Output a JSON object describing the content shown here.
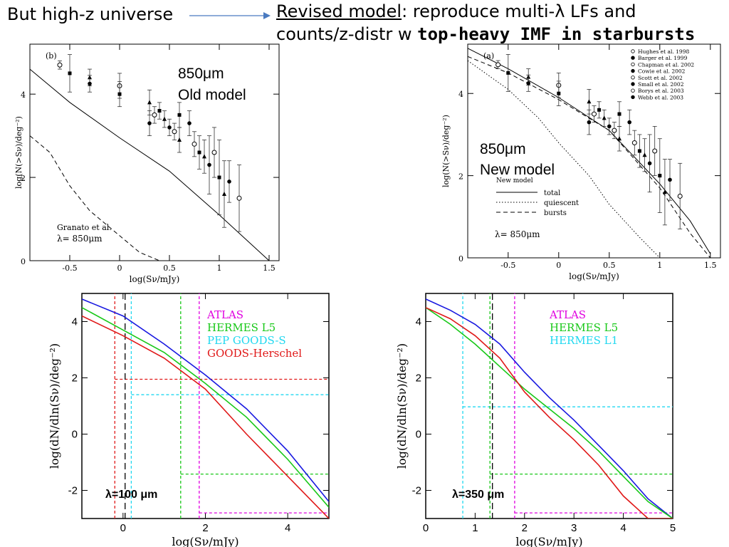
{
  "header": {
    "left": "But high-z universe",
    "right_line1_underlined": "Revised model",
    "right_line1_rest": ": reproduce multi-λ LFs and",
    "right_line2_normal": "counts/z-distr w ",
    "right_line2_bold": "top-heavy IMF in starbursts"
  },
  "chart_data": [
    {
      "id": "old",
      "type": "scatter",
      "panel_label": "(b)",
      "annotation": "850μm",
      "annotation2": "Old model",
      "note1": "Granato et al.",
      "note2": "λ=  850μm",
      "xlabel": "log(Sν/mJy)",
      "ylabel": "log(N(>Sν)/deg⁻²)",
      "xlim": [
        -0.9,
        1.6
      ],
      "ylim": [
        0,
        5.2
      ],
      "xticks": [
        -0.5,
        0,
        0.5,
        1,
        1.5
      ],
      "yticks": [
        0,
        2,
        4
      ],
      "series": [
        {
          "style": "solid",
          "x": [
            -0.9,
            -0.5,
            0,
            0.5,
            1,
            1.5
          ],
          "y": [
            4.6,
            3.8,
            2.95,
            2.15,
            1.1,
            0
          ]
        },
        {
          "style": "dashed",
          "x": [
            -0.9,
            -0.7,
            -0.5,
            -0.3,
            0,
            0.2,
            0.4
          ],
          "y": [
            3.0,
            2.6,
            1.8,
            1.2,
            0.6,
            0.2,
            -0.1
          ]
        }
      ],
      "points": {
        "x": [
          -0.6,
          -0.5,
          -0.3,
          -0.3,
          0,
          0,
          0.3,
          0.3,
          0.35,
          0.4,
          0.45,
          0.5,
          0.55,
          0.6,
          0.6,
          0.7,
          0.75,
          0.8,
          0.85,
          0.9,
          0.95,
          1.0,
          1.05,
          1.1,
          1.2
        ],
        "y": [
          4.7,
          4.5,
          4.4,
          4.25,
          4.2,
          4.0,
          3.8,
          3.3,
          3.5,
          3.6,
          3.4,
          3.2,
          3.1,
          3.5,
          2.9,
          3.3,
          2.8,
          2.6,
          2.5,
          2.3,
          2.6,
          2.0,
          1.6,
          1.9,
          1.5
        ],
        "err": [
          0.1,
          0.45,
          0.2,
          0.2,
          0.3,
          0.3,
          0.3,
          0.3,
          0.2,
          0.2,
          0.2,
          0.2,
          0.2,
          0.3,
          0.3,
          0.3,
          0.3,
          0.4,
          0.4,
          0.7,
          0.6,
          0.9,
          0.8,
          0.5,
          0.8
        ]
      }
    },
    {
      "id": "new",
      "type": "scatter",
      "panel_label": "(a)",
      "annotation": "850μm",
      "annotation2": "New model",
      "legend_title": "New model",
      "legend": [
        "total",
        "quiescent",
        "bursts"
      ],
      "note2": "λ=  850μm",
      "refs": [
        "Hughes et al. 1998",
        "Barger et al. 1999",
        "Chapman et al. 2002",
        "Cowie et al. 2002",
        "Scott et al. 2002",
        "Small et al. 2002",
        "Borys et al. 2003",
        "Webb et al. 2003"
      ],
      "xlabel": "log(Sν/mJy)",
      "ylabel": "log(N(>Sν)/deg⁻²)",
      "xlim": [
        -0.9,
        1.6
      ],
      "ylim": [
        0,
        5.2
      ],
      "xticks": [
        -0.5,
        0,
        0.5,
        1,
        1.5
      ],
      "yticks": [
        0,
        2,
        4
      ],
      "series": [
        {
          "style": "solid",
          "x": [
            -0.9,
            -0.5,
            0,
            0.5,
            1,
            1.3,
            1.5
          ],
          "y": [
            5.1,
            4.6,
            3.9,
            3.1,
            1.8,
            0.9,
            0.1
          ]
        },
        {
          "style": "dotted",
          "x": [
            -0.9,
            -0.5,
            -0.2,
            0,
            0.3,
            0.5,
            0.8,
            1.0
          ],
          "y": [
            4.8,
            4.1,
            3.4,
            2.8,
            2.0,
            1.3,
            0.5,
            0
          ]
        },
        {
          "style": "dashed",
          "x": [
            -0.9,
            -0.5,
            0,
            0.5,
            1,
            1.3,
            1.5
          ],
          "y": [
            4.9,
            4.5,
            3.85,
            3.1,
            1.7,
            0.6,
            0
          ]
        }
      ],
      "points": {
        "x": [
          -0.6,
          -0.5,
          -0.3,
          -0.3,
          0,
          0,
          0.3,
          0.3,
          0.35,
          0.4,
          0.45,
          0.5,
          0.55,
          0.6,
          0.6,
          0.7,
          0.75,
          0.8,
          0.85,
          0.9,
          0.95,
          1.0,
          1.05,
          1.1,
          1.2
        ],
        "y": [
          4.7,
          4.5,
          4.4,
          4.25,
          4.2,
          4.0,
          3.8,
          3.3,
          3.5,
          3.6,
          3.4,
          3.2,
          3.1,
          3.5,
          2.9,
          3.3,
          2.8,
          2.6,
          2.5,
          2.3,
          2.6,
          2.0,
          1.6,
          1.9,
          1.5
        ],
        "err": [
          0.1,
          0.45,
          0.2,
          0.2,
          0.3,
          0.3,
          0.3,
          0.3,
          0.2,
          0.2,
          0.2,
          0.2,
          0.2,
          0.3,
          0.3,
          0.3,
          0.3,
          0.4,
          0.4,
          0.7,
          0.6,
          0.9,
          0.8,
          0.5,
          0.8
        ]
      }
    },
    {
      "id": "c100",
      "type": "line",
      "annotation": "λ=100 μm",
      "xlabel": "log(Sν/mJy)",
      "ylabel": "log(dN/dln(Sν)/deg⁻²)",
      "xlim": [
        -1,
        5
      ],
      "ylim": [
        -3,
        5
      ],
      "xticks": [
        0,
        2,
        4
      ],
      "yticks": [
        -2,
        0,
        2,
        4
      ],
      "legend": [
        {
          "name": "ATLAS",
          "color": "#e000e0"
        },
        {
          "name": "HERMES L5",
          "color": "#18c818"
        },
        {
          "name": "PEP GOODS-S",
          "color": "#20d8f0"
        },
        {
          "name": "GOODS-Herschel",
          "color": "#e01818"
        }
      ],
      "vline_black": 0.05,
      "limits": [
        {
          "color": "#e01818",
          "x": -0.2,
          "y": 1.95
        },
        {
          "color": "#20d8f0",
          "x": 0.2,
          "y": 1.4
        },
        {
          "color": "#18c818",
          "x": 1.4,
          "y": -1.42
        },
        {
          "color": "#e000e0",
          "x": 1.85,
          "y": -2.8
        }
      ],
      "series": [
        {
          "color": "#1818e0",
          "x": [
            -1,
            0,
            1,
            2,
            3,
            4,
            5
          ],
          "y": [
            4.8,
            4.2,
            3.2,
            2.1,
            0.9,
            -0.6,
            -2.4
          ]
        },
        {
          "color": "#18c818",
          "x": [
            -1,
            0,
            1,
            2,
            3,
            4,
            5
          ],
          "y": [
            4.5,
            3.7,
            2.9,
            1.8,
            0.6,
            -0.9,
            -2.6
          ]
        },
        {
          "color": "#e01818",
          "x": [
            -1,
            0,
            1,
            2,
            3,
            4,
            5
          ],
          "y": [
            4.2,
            3.5,
            2.7,
            1.6,
            0.0,
            -1.5,
            -3.0
          ]
        }
      ]
    },
    {
      "id": "c350",
      "type": "line",
      "annotation": "λ=350 μm",
      "xlabel": "log(Sν/mJy)",
      "ylabel": "log(dN/dln(Sν)/deg⁻²)",
      "xlim": [
        0,
        5
      ],
      "ylim": [
        -3,
        5
      ],
      "xticks": [
        0,
        1,
        2,
        3,
        4,
        5
      ],
      "yticks": [
        -2,
        0,
        2,
        4
      ],
      "legend": [
        {
          "name": "ATLAS",
          "color": "#e000e0"
        },
        {
          "name": "HERMES L5",
          "color": "#18c818"
        },
        {
          "name": "HERMES L1",
          "color": "#20d8f0"
        }
      ],
      "vline_black": 1.35,
      "limits": [
        {
          "color": "#20d8f0",
          "x": 0.75,
          "y": 0.97
        },
        {
          "color": "#18c818",
          "x": 1.3,
          "y": -1.42
        },
        {
          "color": "#e000e0",
          "x": 1.8,
          "y": -2.8
        }
      ],
      "series": [
        {
          "color": "#1818e0",
          "x": [
            0,
            0.5,
            1,
            1.5,
            2,
            2.5,
            3,
            3.5,
            4,
            4.5,
            5
          ],
          "y": [
            4.8,
            4.4,
            3.9,
            3.2,
            2.2,
            1.3,
            0.5,
            -0.4,
            -1.3,
            -2.3,
            -3.2
          ]
        },
        {
          "color": "#18c818",
          "x": [
            0,
            0.5,
            1,
            1.5,
            2,
            2.5,
            3,
            3.5,
            4,
            4.5,
            5
          ],
          "y": [
            4.5,
            3.9,
            3.2,
            2.4,
            1.6,
            0.9,
            0.2,
            -0.6,
            -1.5,
            -2.4,
            -3.3
          ]
        },
        {
          "color": "#e01818",
          "x": [
            0,
            0.5,
            1,
            1.5,
            2,
            2.5,
            3,
            3.5,
            4,
            4.5,
            5
          ],
          "y": [
            4.5,
            4.1,
            3.5,
            2.7,
            1.5,
            0.6,
            -0.2,
            -1.1,
            -2.2,
            -3.0,
            -3.8
          ]
        }
      ]
    }
  ]
}
